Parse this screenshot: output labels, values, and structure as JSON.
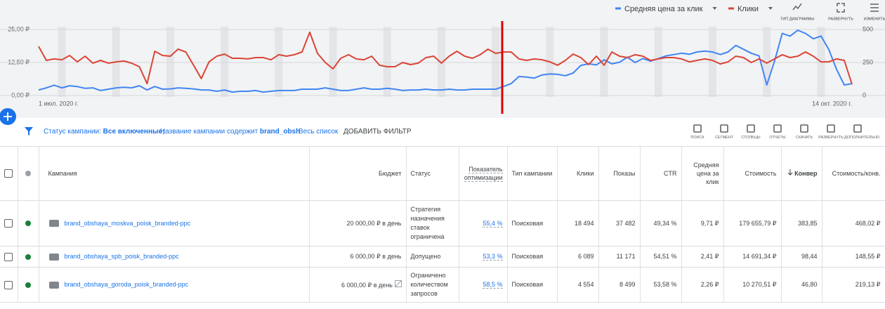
{
  "chart_data": {
    "type": "line",
    "categories": [
      "1 июл. 2020 г.",
      null,
      null,
      null,
      null,
      null,
      null,
      null,
      null,
      null,
      null,
      null,
      null,
      null,
      null,
      null,
      null,
      null,
      null,
      null,
      null,
      null,
      null,
      null,
      null,
      null,
      null,
      null,
      null,
      null,
      null,
      null,
      null,
      null,
      null,
      null,
      null,
      null,
      null,
      null,
      null,
      null,
      null,
      null,
      null,
      null,
      null,
      null,
      null,
      null,
      null,
      null,
      null,
      null,
      null,
      null,
      null,
      null,
      null,
      null,
      null,
      null,
      null,
      null,
      null,
      null,
      null,
      null,
      null,
      null,
      null,
      null,
      null,
      null,
      null,
      null,
      null,
      null,
      null,
      null,
      null,
      null,
      null,
      null,
      null,
      null,
      null,
      null,
      null,
      null,
      null,
      null,
      null,
      null,
      null,
      null,
      null,
      null,
      null,
      null,
      null,
      null,
      null,
      null,
      null,
      "14 окт. 2020 г."
    ],
    "series": [
      {
        "name": "Средняя цена за клик",
        "color": "#4285f4",
        "values": [
          2.1,
          2.9,
          3.9,
          2.9,
          3.7,
          3.4,
          2.7,
          2.9,
          1.9,
          2.4,
          2.9,
          3.1,
          2.9,
          3.7,
          2.1,
          3.4,
          2.4,
          2.5,
          2.9,
          2.7,
          2.5,
          2.1,
          2.1,
          1.6,
          2.1,
          1.3,
          1.6,
          1.6,
          1.9,
          1.3,
          1.6,
          1.9,
          1.9,
          1.9,
          2.4,
          2.4,
          2.4,
          2.9,
          2.4,
          1.9,
          1.9,
          2.4,
          2.9,
          2.4,
          2.4,
          2.7,
          2.4,
          1.9,
          2.1,
          2.1,
          2.4,
          2.1,
          2.1,
          2.4,
          2.1,
          2.1,
          2.4,
          2.4,
          2.4,
          2.4,
          3.4,
          4.5,
          7.2,
          7.0,
          6.6,
          7.8,
          8.2,
          8.0,
          7.5,
          8.5,
          11.4,
          12.0,
          11.6,
          13.5,
          12.0,
          12.6,
          14.5,
          12.5,
          14.0,
          13.0,
          14.0,
          15.0,
          15.5,
          16.0,
          15.6,
          16.5,
          16.8,
          16.5,
          15.5,
          16.5,
          19.0,
          17.5,
          16.0,
          15.0,
          4.0,
          13.0,
          23.5,
          22.5,
          24.7,
          23.5,
          21.5,
          22.5,
          17.5,
          10.0,
          4.0,
          4.5
        ]
      },
      {
        "name": "Клики",
        "color": "#db4437",
        "axis": "y2",
        "values": [
          372,
          266,
          277,
          271,
          303,
          255,
          298,
          245,
          266,
          245,
          255,
          261,
          245,
          218,
          90,
          335,
          303,
          298,
          351,
          330,
          229,
          128,
          255,
          298,
          314,
          282,
          282,
          277,
          287,
          287,
          271,
          309,
          298,
          309,
          330,
          479,
          319,
          250,
          202,
          282,
          309,
          277,
          271,
          298,
          229,
          218,
          218,
          250,
          234,
          245,
          287,
          298,
          245,
          298,
          335,
          298,
          282,
          309,
          351,
          319,
          330,
          330,
          277,
          266,
          277,
          271,
          255,
          229,
          266,
          314,
          287,
          234,
          298,
          229,
          330,
          298,
          287,
          309,
          298,
          266,
          277,
          287,
          287,
          277,
          255,
          266,
          277,
          266,
          239,
          255,
          298,
          287,
          250,
          277,
          245,
          277,
          309,
          287,
          298,
          330,
          298,
          255,
          255,
          277,
          266,
          85
        ]
      }
    ],
    "ylim": [
      0,
      25
    ],
    "yticks": [
      {
        "value": 0,
        "label": "0,00 ₽"
      },
      {
        "value": 12.5,
        "label": "12,50 ₽"
      },
      {
        "value": 25,
        "label": "25,00 ₽"
      }
    ],
    "y2lim": [
      0,
      500
    ],
    "y2ticks": [
      0,
      250,
      500
    ],
    "grid": true
  },
  "chart_tools": [
    "ТИП ДИАГРАММЫ",
    "РАЗВЕРНУТЬ",
    "ИЗМЕНИТЬ"
  ],
  "filters": {
    "status_label": "Статус кампании:",
    "status_value": "Все включенные;",
    "name_label": "Название кампании содержит",
    "name_value": "brand_obsh",
    "list": "Весь список",
    "add": "ДОБАВИТЬ ФИЛЬТР"
  },
  "table_tools": [
    "ПОИСК",
    "СЕГМЕНТ",
    "СТОЛБЦЫ",
    "ОТЧЕТЫ",
    "СКАЧАТЬ",
    "РАЗВЕРНУТЬ",
    "ДОПОЛНИТЕЛЬНО"
  ],
  "table": {
    "headers": [
      "Кампания",
      "Бюджет",
      "Статус",
      "Показатель оптимизации",
      "Тип кампании",
      "Клики",
      "Показы",
      "CTR",
      "Средняя цена за клик",
      "Стоимость",
      "Конвер",
      "Стоимость/конв."
    ],
    "rows": [
      [
        "brand_obshaya_moskva_poisk_branded-ppc",
        "20 000,00 ₽ в день",
        "Стратегия назначения ставок ограничена",
        "55,4 %",
        "Поисковая",
        "18 494",
        "37 482",
        "49,34 %",
        "9,71 ₽",
        "179 655,79 ₽",
        "383,85",
        "468,02 ₽"
      ],
      [
        "brand_obshaya_spb_poisk_branded-ppc",
        "6 000,00 ₽ в день",
        "Допущено",
        "53,3 %",
        "Поисковая",
        "6 089",
        "11 171",
        "54,51 %",
        "2,41 ₽",
        "14 691,34 ₽",
        "98,44",
        "148,55 ₽"
      ],
      [
        "brand_obshaya_goroda_poisk_branded-ppc",
        "6 000,00 ₽ в день",
        "Ограничено количеством запросов",
        "58,5 %",
        "Поисковая",
        "4 554",
        "8 499",
        "53,58 %",
        "2,26 ₽",
        "10 270,51 ₽",
        "46,80",
        "219,13 ₽"
      ]
    ]
  }
}
